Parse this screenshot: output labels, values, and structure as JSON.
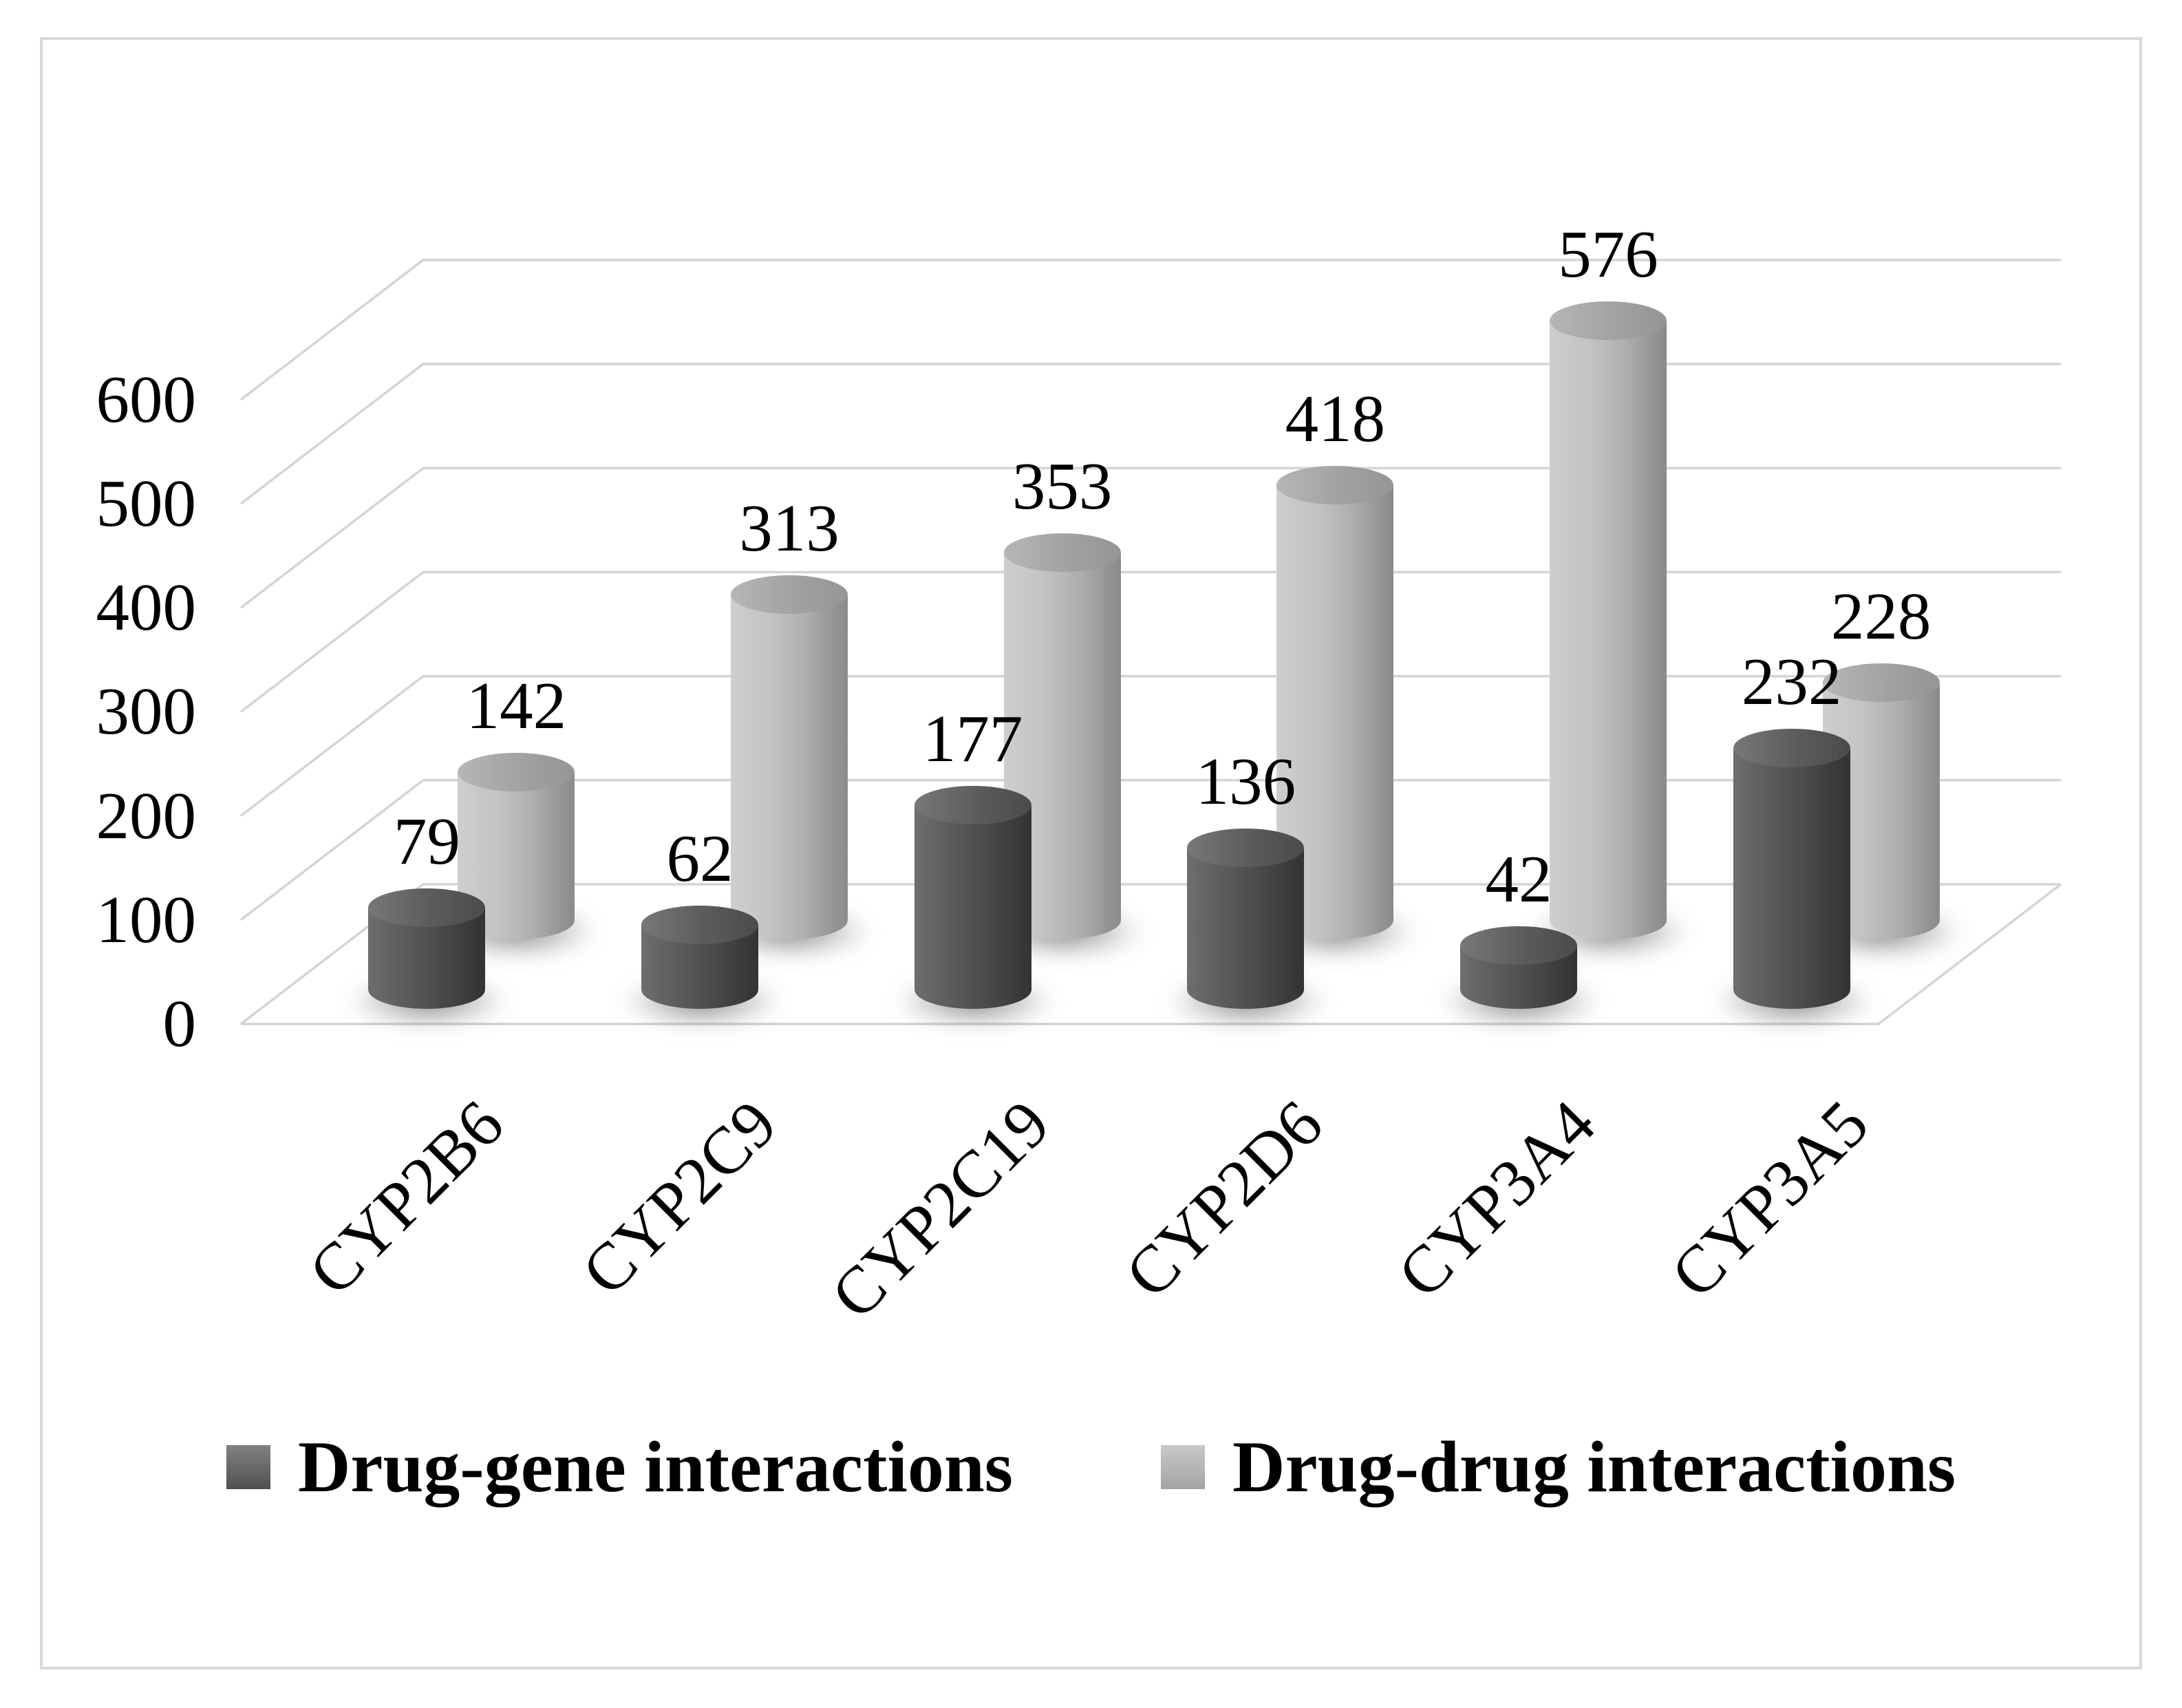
{
  "chart_data": {
    "type": "bar",
    "style": "3d-cylinder",
    "title": "",
    "xlabel": "",
    "ylabel": "",
    "categories": [
      "CYP2B6",
      "CYP2C9",
      "CYP2C19",
      "CYP2D6",
      "CYP3A4",
      "CYP3A5"
    ],
    "series": [
      {
        "name": "Drug-gene interactions",
        "values": [
          79,
          62,
          177,
          136,
          42,
          232
        ],
        "color": "#4f4f4f"
      },
      {
        "name": "Drug-drug interactions",
        "values": [
          142,
          313,
          353,
          418,
          576,
          228
        ],
        "color": "#b5b5b5"
      }
    ],
    "yticks": [
      0,
      100,
      200,
      300,
      400,
      500,
      600
    ],
    "ylim": [
      0,
      650
    ],
    "grid": true,
    "gridline_color": "#d4d4d4",
    "legend_position": "bottom",
    "frame_border_color": "#d9d9d9",
    "background": "#ffffff"
  }
}
